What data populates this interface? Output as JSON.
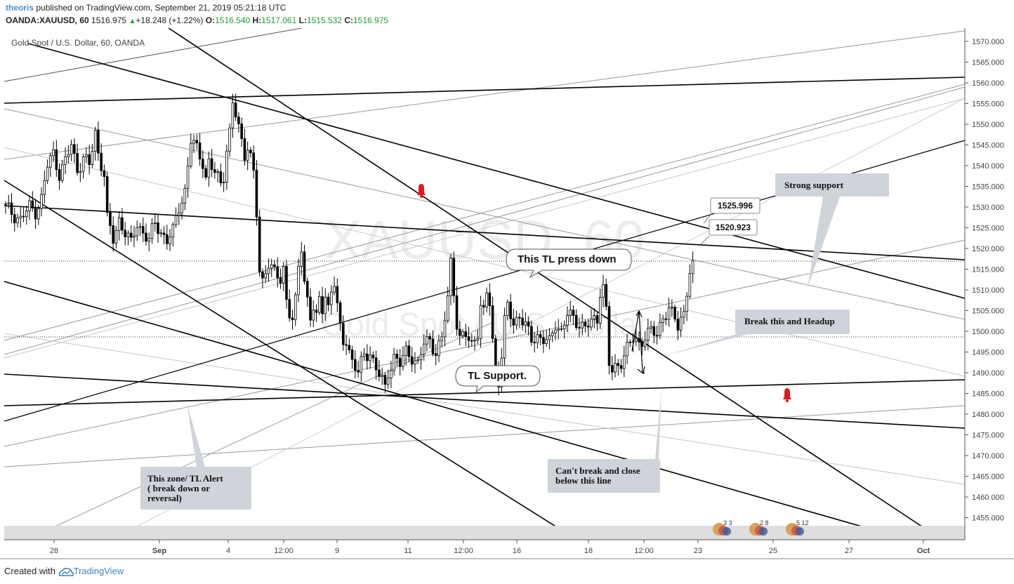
{
  "header": {
    "author": "theoris",
    "published_text": "published on TradingView.com, September 21, 2019 05:21:18 UTC",
    "symbol": "OANDA:XAUUSD, 60",
    "last": "1516.975",
    "change_arrow": "▲",
    "change": "+18.248 (+1.22%)",
    "o_label": "O:",
    "o_value": "1516.540",
    "h_label": "H:",
    "h_value": "1517.061",
    "l_label": "L:",
    "l_value": "1515.532",
    "c_label": "C:",
    "c_value": "1516.975"
  },
  "chart_data": {
    "type": "candlestick",
    "title": "Gold Spot / U.S. Dollar, 60, OANDA",
    "watermark_symbol": "XAUUSD, 60",
    "watermark_name": "Gold Spot / U.S. Dollar",
    "ylim": [
      1450,
      1574
    ],
    "y_ticks": [
      "1570.000",
      "1565.000",
      "1560.000",
      "1555.000",
      "1550.000",
      "1545.000",
      "1540.000",
      "1535.000",
      "1530.000",
      "1525.000",
      "1520.000",
      "1515.000",
      "1510.000",
      "1505.000",
      "1500.000",
      "1495.000",
      "1490.000",
      "1485.000",
      "1480.000",
      "1475.000",
      "1470.000",
      "1465.000",
      "1460.000",
      "1455.000"
    ],
    "x_ticks": [
      "28",
      "Sep",
      "4",
      "12:00",
      "9",
      "11",
      "12:00",
      "16",
      "18",
      "12:00",
      "23",
      "25",
      "27",
      "Oct"
    ],
    "x_tick_bold": [
      false,
      true,
      false,
      false,
      false,
      false,
      false,
      false,
      false,
      false,
      false,
      false,
      false,
      true
    ],
    "last_price": 1516.975,
    "horizontal_marker": 1499.0,
    "price_path": [
      [
        0,
        1530
      ],
      [
        3,
        1528
      ],
      [
        5,
        1527
      ],
      [
        8,
        1530
      ],
      [
        10,
        1529
      ],
      [
        12,
        1532
      ],
      [
        14,
        1540
      ],
      [
        16,
        1543
      ],
      [
        18,
        1538
      ],
      [
        20,
        1541
      ],
      [
        22,
        1545
      ],
      [
        24,
        1539
      ],
      [
        26,
        1542
      ],
      [
        28,
        1540
      ],
      [
        30,
        1548
      ],
      [
        31,
        1543
      ],
      [
        33,
        1538
      ],
      [
        34,
        1527
      ],
      [
        36,
        1522
      ],
      [
        38,
        1527
      ],
      [
        40,
        1524
      ],
      [
        42,
        1521
      ],
      [
        44,
        1526
      ],
      [
        46,
        1524
      ],
      [
        48,
        1522
      ],
      [
        50,
        1526
      ],
      [
        52,
        1524
      ],
      [
        54,
        1522
      ],
      [
        56,
        1524
      ],
      [
        58,
        1530
      ],
      [
        60,
        1534
      ],
      [
        62,
        1546
      ],
      [
        64,
        1544
      ],
      [
        66,
        1541
      ],
      [
        67,
        1537
      ],
      [
        68,
        1541
      ],
      [
        70,
        1538
      ],
      [
        72,
        1536
      ],
      [
        73,
        1538
      ],
      [
        74,
        1544
      ],
      [
        75,
        1548
      ],
      [
        76,
        1555
      ],
      [
        77,
        1552
      ],
      [
        78,
        1549
      ],
      [
        79,
        1546
      ],
      [
        80,
        1543
      ],
      [
        81,
        1545
      ],
      [
        82,
        1542
      ],
      [
        83,
        1538
      ],
      [
        84,
        1528
      ],
      [
        85,
        1514
      ],
      [
        86,
        1512
      ],
      [
        87,
        1515
      ],
      [
        88,
        1517
      ],
      [
        90,
        1514
      ],
      [
        92,
        1512
      ],
      [
        93,
        1515
      ],
      [
        94,
        1508
      ],
      [
        95,
        1505
      ],
      [
        96,
        1503
      ],
      [
        97,
        1507
      ],
      [
        98,
        1515
      ],
      [
        99,
        1520
      ],
      [
        100,
        1512
      ],
      [
        101,
        1508
      ],
      [
        102,
        1504
      ],
      [
        103,
        1506
      ],
      [
        104,
        1503
      ],
      [
        105,
        1507
      ],
      [
        106,
        1505
      ],
      [
        107,
        1509
      ],
      [
        108,
        1506
      ],
      [
        109,
        1510
      ],
      [
        110,
        1512
      ],
      [
        111,
        1506
      ],
      [
        112,
        1500
      ],
      [
        113,
        1497
      ],
      [
        114,
        1498
      ],
      [
        116,
        1493
      ],
      [
        118,
        1490
      ],
      [
        120,
        1494
      ],
      [
        122,
        1495
      ],
      [
        124,
        1491
      ],
      [
        126,
        1488
      ],
      [
        127,
        1486
      ],
      [
        128,
        1490
      ],
      [
        130,
        1494
      ],
      [
        132,
        1492
      ],
      [
        134,
        1495
      ],
      [
        136,
        1494
      ],
      [
        138,
        1492
      ],
      [
        140,
        1497
      ],
      [
        142,
        1498
      ],
      [
        144,
        1495
      ],
      [
        146,
        1498
      ],
      [
        147,
        1503
      ],
      [
        148,
        1508
      ],
      [
        149,
        1517
      ],
      [
        150,
        1510
      ],
      [
        151,
        1502
      ],
      [
        152,
        1498
      ],
      [
        154,
        1499
      ],
      [
        156,
        1497
      ],
      [
        158,
        1500
      ],
      [
        159,
        1506
      ],
      [
        160,
        1504
      ],
      [
        161,
        1509
      ],
      [
        162,
        1507
      ],
      [
        163,
        1498
      ],
      [
        164,
        1491
      ],
      [
        165,
        1488
      ],
      [
        166,
        1494
      ],
      [
        167,
        1502
      ],
      [
        168,
        1506
      ],
      [
        169,
        1504
      ],
      [
        170,
        1502
      ],
      [
        172,
        1504
      ],
      [
        174,
        1501
      ],
      [
        176,
        1498
      ],
      [
        178,
        1499
      ],
      [
        180,
        1498
      ],
      [
        182,
        1497
      ],
      [
        184,
        1502
      ],
      [
        186,
        1500
      ],
      [
        188,
        1504
      ],
      [
        190,
        1503
      ],
      [
        192,
        1502
      ],
      [
        194,
        1501
      ],
      [
        196,
        1502
      ],
      [
        198,
        1503
      ],
      [
        199,
        1510
      ],
      [
        200,
        1511
      ],
      [
        201,
        1505
      ],
      [
        202,
        1492
      ],
      [
        203,
        1490
      ],
      [
        204,
        1491
      ],
      [
        206,
        1493
      ],
      [
        208,
        1496
      ],
      [
        210,
        1498
      ],
      [
        212,
        1497
      ],
      [
        214,
        1499
      ],
      [
        216,
        1500
      ],
      [
        218,
        1499
      ],
      [
        220,
        1504
      ],
      [
        222,
        1505
      ],
      [
        224,
        1503
      ],
      [
        225,
        1501
      ],
      [
        226,
        1503
      ],
      [
        227,
        1505
      ],
      [
        228,
        1510
      ],
      [
        229,
        1514
      ],
      [
        230,
        1517
      ]
    ],
    "annotations": [
      {
        "text": "Strong support",
        "style": "box"
      },
      {
        "text": "This TL press down",
        "style": "callout"
      },
      {
        "text": "Break this and Headup",
        "style": "box"
      },
      {
        "text": "TL Support.",
        "style": "callout"
      },
      {
        "text": "Can't break and close below this line",
        "lines": [
          "Can't break and close",
          "below this line"
        ],
        "style": "box"
      },
      {
        "text": "This zone/ TL Alert ( break down or reversal)",
        "lines": [
          "This zone/ TL Alert",
          "( break down or",
          "reversal)"
        ],
        "style": "box"
      }
    ],
    "price_labels": [
      "1525.996",
      "1520.923"
    ],
    "event_badges": [
      {
        "flag": "US",
        "text": "3  3"
      },
      {
        "flag": "US",
        "text": "2  8"
      },
      {
        "flag": "US",
        "text": "5  12"
      }
    ]
  },
  "colors": {
    "candle": "#000000",
    "trendline": "#000000",
    "grey_line": "#9a9a9a",
    "light_line": "#c8c8c8",
    "annotation_box": "#cfd3da",
    "alert": "#e01b1b",
    "watermark": "#ececec",
    "axis_text": "#444444"
  },
  "footer": {
    "created_with": "Created with",
    "brand": "TradingView"
  }
}
